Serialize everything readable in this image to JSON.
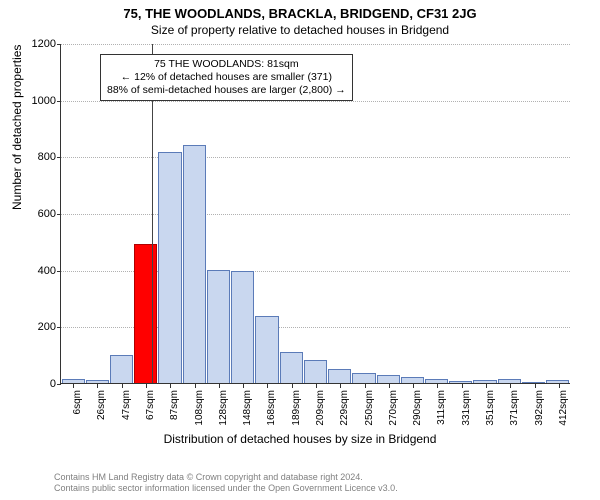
{
  "titles": {
    "line1": "75, THE WOODLANDS, BRACKLA, BRIDGEND, CF31 2JG",
    "line2": "Size of property relative to detached houses in Bridgend"
  },
  "ylabel": "Number of detached properties",
  "xlabel": "Distribution of detached houses by size in Bridgend",
  "ylim": [
    0,
    1200
  ],
  "ytick_step": 200,
  "yticks": [
    0,
    200,
    400,
    600,
    800,
    1000,
    1200
  ],
  "bar_fill": "#c9d7ef",
  "bar_stroke": "#5b7bb8",
  "highlight_fill": "#ff0000",
  "highlight_stroke": "#b00000",
  "ref_line_x_index": 3.75,
  "bars": [
    {
      "label": "6sqm",
      "value": 15
    },
    {
      "label": "26sqm",
      "value": 12
    },
    {
      "label": "47sqm",
      "value": 100
    },
    {
      "label": "67sqm",
      "value": 490,
      "highlight": true
    },
    {
      "label": "87sqm",
      "value": 815
    },
    {
      "label": "108sqm",
      "value": 840
    },
    {
      "label": "128sqm",
      "value": 400
    },
    {
      "label": "148sqm",
      "value": 395
    },
    {
      "label": "168sqm",
      "value": 235
    },
    {
      "label": "189sqm",
      "value": 110
    },
    {
      "label": "209sqm",
      "value": 82
    },
    {
      "label": "229sqm",
      "value": 50
    },
    {
      "label": "250sqm",
      "value": 35
    },
    {
      "label": "270sqm",
      "value": 30
    },
    {
      "label": "290sqm",
      "value": 22
    },
    {
      "label": "311sqm",
      "value": 15
    },
    {
      "label": "331sqm",
      "value": 8
    },
    {
      "label": "351sqm",
      "value": 12
    },
    {
      "label": "371sqm",
      "value": 15
    },
    {
      "label": "392sqm",
      "value": 5
    },
    {
      "label": "412sqm",
      "value": 10
    }
  ],
  "annotation": {
    "l1": "75 THE WOODLANDS: 81sqm",
    "l2": "← 12% of detached houses are smaller (371)",
    "l3": "88% of semi-detached houses are larger (2,800) →"
  },
  "footer": {
    "l1": "Contains HM Land Registry data © Crown copyright and database right 2024.",
    "l2": "Contains public sector information licensed under the Open Government Licence v3.0."
  },
  "fonts": {
    "title": 13,
    "subtitle": 12,
    "axis_label": 12,
    "tick": 11,
    "xtick": 10,
    "annot": 10.5,
    "footer": 9
  },
  "colors": {
    "grid": "#666666",
    "axis": "#333333",
    "bg": "#ffffff",
    "footer": "#808080"
  }
}
